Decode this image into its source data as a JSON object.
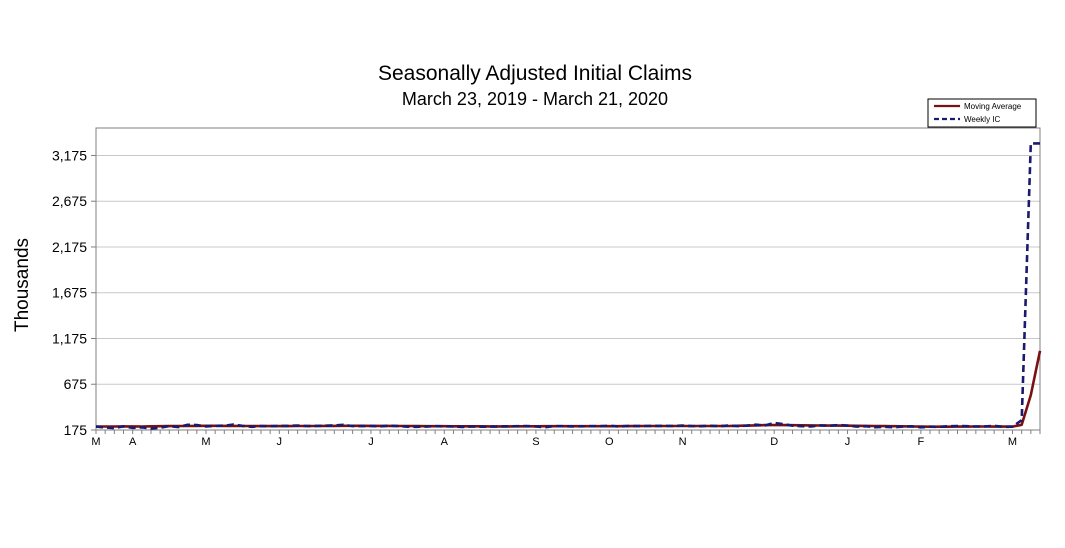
{
  "chart_data": {
    "type": "line",
    "title": "Seasonally Adjusted Initial Claims",
    "subtitle": "March 23, 2019 - March 21, 2020",
    "xlabel": "",
    "ylabel": "Thousands",
    "ylim": [
      175,
      3475
    ],
    "yticks": [
      175,
      675,
      1175,
      1675,
      2175,
      2675,
      3175
    ],
    "ytick_labels": [
      "175",
      "675",
      "1,175",
      "1,675",
      "2,175",
      "2,675",
      "3,175"
    ],
    "xtick_labels": [
      "M",
      "A",
      "M",
      "J",
      "J",
      "A",
      "S",
      "O",
      "N",
      "D",
      "J",
      "F",
      "M"
    ],
    "xtick_positions": [
      0,
      4,
      12,
      20,
      30,
      38,
      48,
      56,
      64,
      74,
      82,
      90,
      100
    ],
    "grid": true,
    "legend_position": "top-right",
    "x": [
      0,
      1,
      2,
      3,
      4,
      5,
      6,
      7,
      8,
      9,
      10,
      11,
      12,
      13,
      14,
      15,
      16,
      17,
      18,
      19,
      20,
      21,
      22,
      23,
      24,
      25,
      26,
      27,
      28,
      29,
      30,
      31,
      32,
      33,
      34,
      35,
      36,
      37,
      38,
      39,
      40,
      41,
      42,
      43,
      44,
      45,
      46,
      47,
      48,
      49,
      50,
      51,
      52,
      53,
      54,
      55,
      56,
      57,
      58,
      59,
      60,
      61,
      62,
      63,
      64,
      65,
      66,
      67,
      68,
      69,
      70,
      71,
      72,
      73,
      74,
      75,
      76,
      77,
      78,
      79,
      80,
      81,
      82,
      83,
      84,
      85,
      86,
      87,
      88,
      89,
      90,
      91,
      92,
      93,
      94,
      95,
      96,
      97,
      98,
      99,
      100,
      101,
      102,
      103
    ],
    "series": [
      {
        "name": "Moving Average",
        "color": "#7a1010",
        "dash": "solid",
        "values": [
          212,
          213,
          213,
          214,
          214,
          213,
          215,
          216,
          218,
          219,
          219,
          220,
          221,
          221,
          220,
          220,
          219,
          219,
          218,
          218,
          218,
          218,
          219,
          219,
          219,
          220,
          220,
          221,
          221,
          221,
          220,
          220,
          220,
          219,
          219,
          218,
          217,
          217,
          216,
          215,
          215,
          215,
          215,
          214,
          214,
          214,
          215,
          215,
          215,
          216,
          216,
          216,
          216,
          216,
          217,
          217,
          217,
          217,
          218,
          218,
          219,
          219,
          219,
          219,
          219,
          219,
          219,
          219,
          219,
          219,
          221,
          223,
          225,
          228,
          228,
          228,
          227,
          226,
          225,
          224,
          223,
          223,
          222,
          221,
          220,
          219,
          218,
          217,
          215,
          213,
          212,
          211,
          211,
          211,
          212,
          212,
          213,
          213,
          212,
          212,
          212,
          232,
          556,
          1039
        ]
      },
      {
        "name": "Weekly IC",
        "color": "#1a1a6e",
        "dash": "dashed",
        "values": [
          212,
          202,
          196,
          215,
          198,
          205,
          190,
          200,
          218,
          207,
          232,
          230,
          213,
          221,
          222,
          235,
          220,
          210,
          218,
          216,
          219,
          220,
          224,
          218,
          220,
          222,
          225,
          232,
          218,
          218,
          220,
          214,
          222,
          218,
          211,
          210,
          212,
          216,
          215,
          213,
          209,
          213,
          211,
          212,
          213,
          215,
          216,
          219,
          213,
          206,
          218,
          217,
          214,
          215,
          217,
          216,
          221,
          213,
          219,
          218,
          219,
          220,
          220,
          219,
          223,
          218,
          216,
          221,
          217,
          224,
          218,
          222,
          233,
          224,
          252,
          238,
          222,
          217,
          214,
          225,
          222,
          229,
          224,
          212,
          216,
          206,
          210,
          206,
          212,
          215,
          205,
          211,
          210,
          216,
          219,
          217,
          213,
          214,
          221,
          210,
          211,
          282,
          3307,
          3307
        ]
      }
    ]
  }
}
